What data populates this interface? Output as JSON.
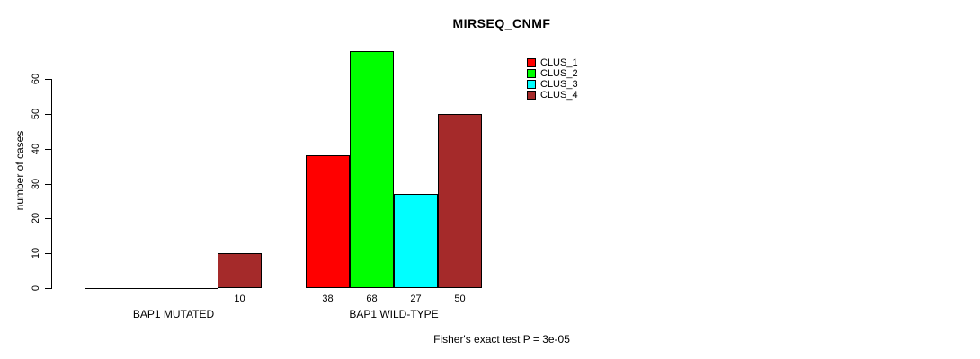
{
  "title": "MIRSEQ_CNMF",
  "footer": "Fisher's exact test P = 3e-05",
  "chart_data": {
    "type": "bar",
    "title": "MIRSEQ_CNMF",
    "xlabel": "",
    "ylabel": "number of cases",
    "ylim": [
      0,
      60
    ],
    "yticks": [
      0,
      10,
      20,
      30,
      40,
      50,
      60
    ],
    "grid": false,
    "legend_position": "top-right",
    "categories": [
      "BAP1 MUTATED",
      "BAP1 WILD-TYPE"
    ],
    "series": [
      {
        "name": "CLUS_1",
        "color": "#FF0000",
        "values": [
          0,
          38
        ]
      },
      {
        "name": "CLUS_2",
        "color": "#00FF00",
        "values": [
          0,
          68
        ]
      },
      {
        "name": "CLUS_3",
        "color": "#00FFFF",
        "values": [
          0,
          27
        ]
      },
      {
        "name": "CLUS_4",
        "color": "#A52A2A",
        "values": [
          10,
          50
        ]
      }
    ],
    "groups": [
      {
        "label": "BAP1 MUTATED",
        "values": [
          0,
          0,
          0,
          10
        ]
      },
      {
        "label": "BAP1 WILD-TYPE",
        "values": [
          38,
          68,
          27,
          50
        ]
      }
    ],
    "bar_value_labels": [
      [
        null,
        null,
        null,
        "10"
      ],
      [
        "38",
        "68",
        "27",
        "50"
      ]
    ],
    "annotation": "Fisher's exact test P = 3e-05"
  }
}
